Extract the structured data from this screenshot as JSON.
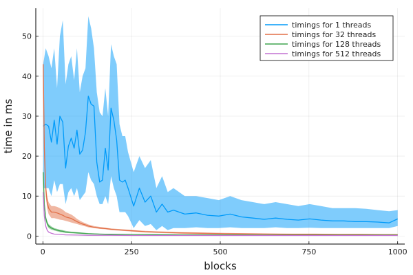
{
  "chart_data": {
    "type": "line",
    "xlabel": "blocks",
    "ylabel": "time in ms",
    "xlim": [
      -20,
      1020
    ],
    "ylim": [
      -2,
      57
    ],
    "xticks": [
      0,
      250,
      500,
      750,
      1000
    ],
    "yticks": [
      0,
      10,
      20,
      30,
      40,
      50
    ],
    "grid": true,
    "legend_position": "top-right",
    "series": [
      {
        "name": "timings for 1 threads",
        "color": "#009af9",
        "band_color": "#009af9",
        "x": [
          1,
          8,
          16,
          24,
          32,
          40,
          48,
          56,
          64,
          72,
          80,
          88,
          96,
          104,
          112,
          120,
          128,
          136,
          144,
          152,
          160,
          168,
          176,
          184,
          192,
          200,
          208,
          216,
          224,
          232,
          240,
          256,
          272,
          288,
          304,
          320,
          336,
          352,
          368,
          384,
          400,
          432,
          464,
          496,
          528,
          560,
          592,
          624,
          656,
          688,
          720,
          752,
          784,
          816,
          848,
          880,
          912,
          944,
          976,
          1000
        ],
        "y": [
          27.5,
          28,
          27.5,
          23.5,
          29,
          23,
          30,
          28.5,
          17,
          22.5,
          24.5,
          22,
          26.5,
          20.5,
          21.5,
          26,
          35,
          33,
          32.5,
          18.5,
          13.5,
          14,
          22,
          16.5,
          32,
          29,
          24,
          14,
          13.5,
          14,
          12,
          7.5,
          12,
          8.5,
          10,
          6,
          8,
          6,
          6.5,
          6,
          5.5,
          5.8,
          5.2,
          5,
          5.5,
          4.8,
          4.5,
          4.2,
          4.5,
          4.2,
          4,
          4.3,
          4,
          3.8,
          3.8,
          3.6,
          3.6,
          3.5,
          3.3,
          4.3
        ],
        "lower": [
          12,
          12,
          12,
          10,
          14,
          11,
          13,
          13,
          8,
          11,
          12,
          10,
          12,
          9,
          10,
          11,
          16,
          14,
          13,
          10,
          8,
          8,
          10,
          8,
          15,
          12,
          10,
          6,
          6,
          6,
          5,
          2,
          4,
          2.5,
          3,
          1.5,
          2.5,
          1.5,
          2,
          2,
          2,
          2.2,
          2,
          2,
          2.2,
          2,
          2,
          2,
          2.2,
          2,
          2,
          2.1,
          2,
          2,
          2,
          2,
          2,
          2,
          2,
          2.5
        ],
        "upper": [
          43,
          47,
          45,
          42,
          47,
          37,
          50,
          54,
          38,
          43,
          45,
          39,
          47,
          36,
          40,
          42,
          55,
          52,
          47,
          36,
          31,
          30,
          37,
          30,
          48,
          45,
          43,
          28,
          25,
          25,
          21,
          16,
          20,
          17,
          19,
          12,
          15,
          11,
          12,
          11,
          10,
          10,
          9.5,
          9,
          10,
          9,
          8.5,
          8,
          8.5,
          8,
          7.5,
          8,
          7.5,
          7,
          7,
          7,
          6.8,
          6.5,
          6.2,
          6.5
        ]
      },
      {
        "name": "timings for 32 threads",
        "color": "#e26f46",
        "band_color": "#e26f46",
        "x": [
          1,
          4,
          8,
          12,
          16,
          20,
          24,
          32,
          40,
          48,
          56,
          64,
          72,
          80,
          88,
          96,
          104,
          112,
          120,
          128,
          144,
          160,
          176,
          192,
          208,
          224,
          240,
          256,
          288,
          320,
          352,
          384,
          448,
          512,
          576,
          640,
          704,
          768,
          832,
          896,
          960,
          1000
        ],
        "y": [
          43,
          22,
          12,
          8.5,
          7,
          6.5,
          6,
          6,
          5.8,
          5.5,
          5.2,
          4.8,
          4.6,
          4.4,
          4,
          3.6,
          3.3,
          3,
          2.8,
          2.5,
          2.2,
          2,
          1.9,
          1.7,
          1.6,
          1.5,
          1.4,
          1.3,
          1.1,
          1,
          0.9,
          0.8,
          0.7,
          0.6,
          0.55,
          0.5,
          0.45,
          0.45,
          0.4,
          0.4,
          0.35,
          0.35
        ],
        "lower": [
          38,
          18,
          10,
          7,
          5.5,
          5,
          4.5,
          4.5,
          4.3,
          4.1,
          4,
          3.8,
          3.6,
          3.4,
          3.2,
          3,
          2.8,
          2.6,
          2.4,
          2.2,
          2,
          1.8,
          1.7,
          1.5,
          1.4,
          1.3,
          1.2,
          1.1,
          0.9,
          0.8,
          0.7,
          0.6,
          0.5,
          0.45,
          0.4,
          0.35,
          0.3,
          0.3,
          0.3,
          0.25,
          0.25,
          0.25
        ],
        "upper": [
          48,
          26,
          14,
          10,
          8.5,
          8,
          7.5,
          7.5,
          7.3,
          7,
          6.6,
          6,
          5.7,
          5.4,
          4.9,
          4.3,
          3.9,
          3.5,
          3.2,
          2.9,
          2.5,
          2.3,
          2.1,
          1.9,
          1.8,
          1.7,
          1.6,
          1.5,
          1.3,
          1.2,
          1.1,
          1,
          0.9,
          0.8,
          0.7,
          0.65,
          0.6,
          0.6,
          0.55,
          0.55,
          0.5,
          0.5
        ]
      },
      {
        "name": "timings for 128 threads",
        "color": "#3ea44e",
        "band_color": "#3ea44e",
        "x": [
          1,
          4,
          8,
          12,
          16,
          24,
          32,
          40,
          48,
          56,
          64,
          80,
          96,
          112,
          128,
          160,
          192,
          256,
          320,
          384,
          512,
          640,
          768,
          896,
          1000
        ],
        "y": [
          16,
          8,
          4.5,
          3.2,
          2.5,
          2,
          1.7,
          1.5,
          1.3,
          1.2,
          1,
          0.9,
          0.8,
          0.7,
          0.6,
          0.5,
          0.45,
          0.4,
          0.35,
          0.3,
          0.3,
          0.25,
          0.25,
          0.25,
          0.25
        ],
        "lower": [
          14.5,
          7,
          3.8,
          2.6,
          2,
          1.6,
          1.4,
          1.2,
          1,
          0.9,
          0.8,
          0.7,
          0.6,
          0.55,
          0.5,
          0.4,
          0.35,
          0.3,
          0.3,
          0.25,
          0.25,
          0.2,
          0.2,
          0.2,
          0.2
        ],
        "upper": [
          17.5,
          9,
          5.2,
          3.8,
          3,
          2.4,
          2,
          1.8,
          1.6,
          1.5,
          1.3,
          1.1,
          1,
          0.85,
          0.75,
          0.6,
          0.55,
          0.5,
          0.4,
          0.35,
          0.35,
          0.3,
          0.3,
          0.3,
          0.3
        ]
      },
      {
        "name": "timings for 512 threads",
        "color": "#c271d2",
        "band_color": "#c271d2",
        "x": [
          1,
          4,
          8,
          12,
          16,
          24,
          32,
          48,
          64,
          96,
          128,
          192,
          256,
          384,
          512,
          640,
          768,
          896,
          1000
        ],
        "y": [
          11,
          5,
          2.5,
          1.5,
          1,
          0.7,
          0.5,
          0.4,
          0.3,
          0.25,
          0.2,
          0.2,
          0.15,
          0.15,
          0.15,
          0.15,
          0.15,
          0.15,
          0.15
        ],
        "lower": [
          10,
          4.5,
          2.2,
          1.3,
          0.9,
          0.6,
          0.45,
          0.35,
          0.25,
          0.2,
          0.18,
          0.15,
          0.12,
          0.12,
          0.12,
          0.12,
          0.12,
          0.12,
          0.12
        ],
        "upper": [
          12,
          5.5,
          2.8,
          1.7,
          1.1,
          0.8,
          0.55,
          0.45,
          0.35,
          0.3,
          0.25,
          0.22,
          0.2,
          0.18,
          0.18,
          0.18,
          0.18,
          0.18,
          0.18
        ]
      }
    ]
  }
}
